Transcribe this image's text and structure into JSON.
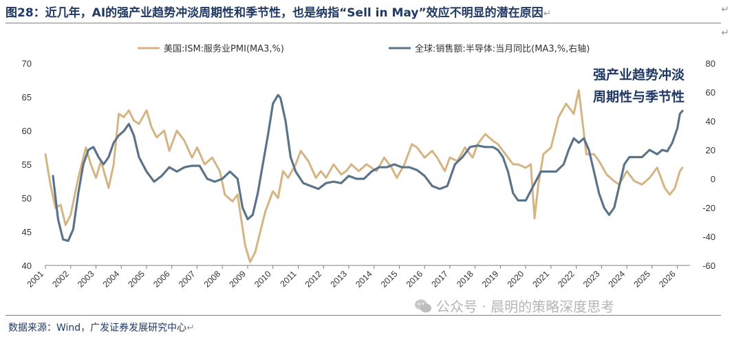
{
  "header": {
    "title": "图28：近几年，AI的强产业趋势冲淡周期性和季节性，也是纳指“Sell in May”效应不明显的潜在原因"
  },
  "source": "数据来源：Wind，广发证券发展研究中心",
  "watermark": "公众号 · 晨明的策略深度思考",
  "colors": {
    "ism": "#d4b483",
    "semi": "#5a7389",
    "text": "#1f3864"
  },
  "chart_data": {
    "type": "line",
    "legend_position": "top",
    "grid": false,
    "annotation": [
      "强产业趋势冲淡",
      "周期性与季节性"
    ],
    "x_ticks": [
      "2001",
      "2002",
      "2003",
      "2004",
      "2005",
      "2006",
      "2007",
      "2008",
      "2009",
      "2010",
      "2011",
      "2012",
      "2013",
      "2014",
      "2015",
      "2016",
      "2017",
      "2018",
      "2019",
      "2020",
      "2021",
      "2022",
      "2023",
      "2024",
      "2025",
      "2026"
    ],
    "y_left": {
      "range": [
        40,
        70
      ],
      "ticks": [
        "40",
        "45",
        "50",
        "55",
        "60",
        "65",
        "70"
      ]
    },
    "y_right": {
      "range": [
        -60,
        80
      ],
      "ticks": [
        "-60",
        "-40",
        "-20",
        "0",
        "20",
        "40",
        "60",
        "80"
      ]
    },
    "series": [
      {
        "name": "美国:ISM:服务业PMI(MA3,%)",
        "axis": "left",
        "x": [
          2001.0,
          2001.2,
          2001.4,
          2001.6,
          2001.8,
          2002.0,
          2002.3,
          2002.6,
          2002.8,
          2003.0,
          2003.2,
          2003.5,
          2003.7,
          2003.9,
          2004.1,
          2004.3,
          2004.5,
          2004.7,
          2005.0,
          2005.2,
          2005.4,
          2005.7,
          2005.9,
          2006.2,
          2006.5,
          2006.8,
          2007.0,
          2007.3,
          2007.6,
          2007.9,
          2008.1,
          2008.4,
          2008.6,
          2008.9,
          2009.1,
          2009.3,
          2009.5,
          2009.7,
          2010.0,
          2010.2,
          2010.4,
          2010.6,
          2010.9,
          2011.1,
          2011.4,
          2011.7,
          2011.9,
          2012.1,
          2012.4,
          2012.7,
          2012.9,
          2013.1,
          2013.4,
          2013.7,
          2013.9,
          2014.1,
          2014.4,
          2014.7,
          2014.9,
          2015.2,
          2015.5,
          2015.7,
          2016.0,
          2016.3,
          2016.5,
          2016.8,
          2017.0,
          2017.3,
          2017.6,
          2017.9,
          2018.1,
          2018.4,
          2018.7,
          2018.9,
          2019.2,
          2019.5,
          2019.7,
          2020.0,
          2020.2,
          2020.35,
          2020.5,
          2020.7,
          2021.0,
          2021.3,
          2021.6,
          2021.9,
          2022.1,
          2022.4,
          2022.7,
          2022.9,
          2023.2,
          2023.5,
          2023.7,
          2024.0,
          2024.3,
          2024.6,
          2024.9,
          2025.2,
          2025.5,
          2025.7,
          2025.9,
          2026.1,
          2026.2
        ],
        "values": [
          56.5,
          52.0,
          48.5,
          49.0,
          46.0,
          47.5,
          53.0,
          57.5,
          55.0,
          53.0,
          55.5,
          51.5,
          55.0,
          62.5,
          62.0,
          63.0,
          61.5,
          61.0,
          63.0,
          60.5,
          59.0,
          60.0,
          57.0,
          60.0,
          58.5,
          56.0,
          57.5,
          55.0,
          56.0,
          54.0,
          50.5,
          49.5,
          50.5,
          43.0,
          40.5,
          42.0,
          45.0,
          48.0,
          51.0,
          50.0,
          54.0,
          53.0,
          55.0,
          57.0,
          55.5,
          53.0,
          54.0,
          53.0,
          55.0,
          53.5,
          54.0,
          55.0,
          54.0,
          55.0,
          54.5,
          54.0,
          56.0,
          54.5,
          53.0,
          55.0,
          58.0,
          57.5,
          56.0,
          57.0,
          56.0,
          54.0,
          56.0,
          55.5,
          57.5,
          56.0,
          58.0,
          59.5,
          58.5,
          58.0,
          56.5,
          55.0,
          55.0,
          54.5,
          55.0,
          47.0,
          52.0,
          56.5,
          57.5,
          62.0,
          64.0,
          62.5,
          66.0,
          56.5,
          56.5,
          55.5,
          53.5,
          52.5,
          52.0,
          54.0,
          52.5,
          52.0,
          53.0,
          54.5,
          51.5,
          50.5,
          51.5,
          54.0,
          54.5
        ]
      },
      {
        "name": "全球:销售额:半导体:当月同比(MA3,%,右轴)",
        "axis": "right",
        "x": [
          2001.3,
          2001.5,
          2001.7,
          2001.9,
          2002.1,
          2002.3,
          2002.5,
          2002.7,
          2002.9,
          2003.1,
          2003.3,
          2003.5,
          2003.7,
          2003.9,
          2004.1,
          2004.3,
          2004.5,
          2004.7,
          2005.0,
          2005.3,
          2005.6,
          2005.9,
          2006.2,
          2006.5,
          2006.8,
          2007.1,
          2007.4,
          2007.7,
          2008.0,
          2008.3,
          2008.6,
          2008.8,
          2009.0,
          2009.2,
          2009.4,
          2009.6,
          2009.8,
          2010.0,
          2010.2,
          2010.3,
          2010.5,
          2010.7,
          2010.9,
          2011.2,
          2011.5,
          2011.8,
          2012.1,
          2012.4,
          2012.7,
          2013.0,
          2013.3,
          2013.6,
          2013.9,
          2014.2,
          2014.5,
          2014.8,
          2015.1,
          2015.4,
          2015.7,
          2016.0,
          2016.3,
          2016.6,
          2016.9,
          2017.2,
          2017.5,
          2017.8,
          2018.1,
          2018.4,
          2018.7,
          2018.9,
          2019.1,
          2019.3,
          2019.5,
          2019.7,
          2020.0,
          2020.3,
          2020.6,
          2020.9,
          2021.2,
          2021.5,
          2021.7,
          2021.9,
          2022.1,
          2022.3,
          2022.5,
          2022.7,
          2022.9,
          2023.1,
          2023.3,
          2023.5,
          2023.7,
          2023.9,
          2024.1,
          2024.3,
          2024.6,
          2024.9,
          2025.2,
          2025.4,
          2025.6,
          2025.8,
          2026.0,
          2026.1,
          2026.2
        ],
        "values": [
          2,
          -28,
          -42,
          -43,
          -35,
          -10,
          10,
          20,
          22,
          15,
          10,
          15,
          25,
          30,
          33,
          38,
          30,
          15,
          5,
          -2,
          2,
          8,
          5,
          8,
          9,
          9,
          0,
          -2,
          0,
          5,
          0,
          -20,
          -28,
          -25,
          -10,
          10,
          30,
          52,
          58,
          56,
          40,
          15,
          5,
          -3,
          -5,
          -7,
          -3,
          -2,
          -3,
          2,
          0,
          0,
          5,
          8,
          8,
          10,
          8,
          8,
          6,
          2,
          -5,
          -7,
          -5,
          10,
          15,
          22,
          23,
          22,
          22,
          20,
          15,
          5,
          -10,
          -15,
          -15,
          -5,
          5,
          5,
          5,
          10,
          20,
          28,
          25,
          28,
          20,
          5,
          -10,
          -20,
          -25,
          -20,
          -5,
          10,
          15,
          15,
          15,
          20,
          17,
          20,
          19,
          25,
          35,
          45,
          47
        ]
      }
    ]
  }
}
